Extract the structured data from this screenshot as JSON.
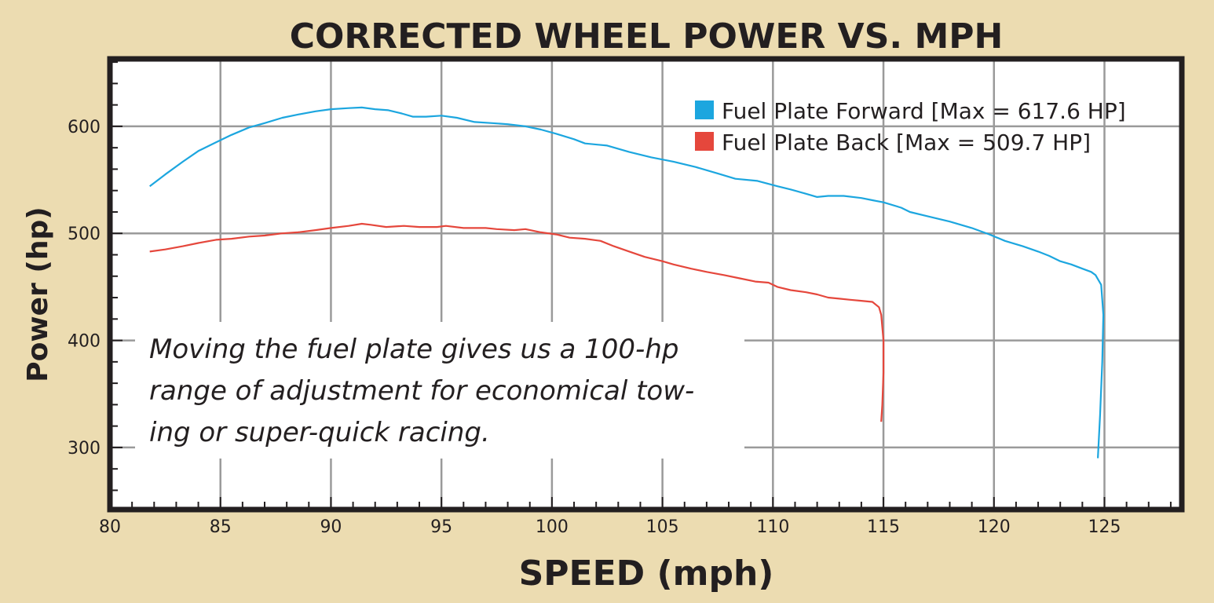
{
  "colors": {
    "page_background": "#ecdcb1",
    "plot_background": "#ffffff",
    "frame": "#231f20",
    "grid": "#9a9a9a",
    "fuel_plate_forward": "#1ca6df",
    "fuel_plate_back": "#e5473c",
    "text": "#231f20"
  },
  "chart_data": {
    "type": "line",
    "title": "CORRECTED WHEEL POWER VS. MPH",
    "xlabel": "SPEED (mph)",
    "ylabel": "Power (hp)",
    "xlim": [
      80,
      128.5
    ],
    "ylim": [
      242,
      663
    ],
    "x_ticks": [
      80,
      85,
      90,
      95,
      100,
      105,
      110,
      115,
      120,
      125
    ],
    "y_ticks": [
      300,
      400,
      500,
      600
    ],
    "grid": true,
    "legend_position": "top-right",
    "annotation": "Moving the fuel plate gives us a 100-hp range of adjustment for economical tow- ing or super-quick racing.",
    "annotation_lines": [
      "Moving the fuel plate gives us a 100-hp",
      "range of adjustment for economical tow-",
      "ing or super-quick racing."
    ],
    "series": [
      {
        "name": "Fuel Plate Forward [Max = 617.6 HP]",
        "color": "#1ca6df",
        "points": [
          [
            81.8,
            544
          ],
          [
            82.5,
            555
          ],
          [
            83.3,
            567
          ],
          [
            84.0,
            577
          ],
          [
            84.8,
            585
          ],
          [
            85.5,
            592
          ],
          [
            86.3,
            599
          ],
          [
            87.0,
            603
          ],
          [
            87.8,
            608
          ],
          [
            88.5,
            611
          ],
          [
            89.3,
            614
          ],
          [
            90.0,
            616
          ],
          [
            90.8,
            617
          ],
          [
            91.4,
            617.6
          ],
          [
            92.0,
            616
          ],
          [
            92.6,
            615
          ],
          [
            93.2,
            612
          ],
          [
            93.7,
            609
          ],
          [
            94.3,
            609
          ],
          [
            95.0,
            610
          ],
          [
            95.7,
            608
          ],
          [
            96.5,
            604
          ],
          [
            97.3,
            603
          ],
          [
            98.0,
            602
          ],
          [
            98.8,
            600
          ],
          [
            99.5,
            597
          ],
          [
            100.2,
            593
          ],
          [
            101.0,
            588
          ],
          [
            101.5,
            584
          ],
          [
            102.5,
            582
          ],
          [
            103.5,
            576
          ],
          [
            104.5,
            571
          ],
          [
            105.5,
            567
          ],
          [
            106.5,
            562
          ],
          [
            107.5,
            556
          ],
          [
            108.3,
            551
          ],
          [
            109.3,
            549
          ],
          [
            110.2,
            544
          ],
          [
            110.8,
            541
          ],
          [
            111.5,
            537
          ],
          [
            112.0,
            534
          ],
          [
            112.5,
            535
          ],
          [
            113.2,
            535
          ],
          [
            114.0,
            533
          ],
          [
            114.5,
            531
          ],
          [
            115.0,
            529
          ],
          [
            115.8,
            524
          ],
          [
            116.2,
            520
          ],
          [
            117.0,
            516
          ],
          [
            118.0,
            511
          ],
          [
            119.0,
            505
          ],
          [
            119.8,
            499
          ],
          [
            120.5,
            493
          ],
          [
            121.3,
            488
          ],
          [
            122.0,
            483
          ],
          [
            122.5,
            479
          ],
          [
            123.0,
            474
          ],
          [
            123.5,
            471
          ],
          [
            124.0,
            467
          ],
          [
            124.4,
            464
          ],
          [
            124.6,
            461
          ],
          [
            124.85,
            452
          ],
          [
            124.95,
            424
          ],
          [
            124.9,
            380
          ],
          [
            124.8,
            330
          ],
          [
            124.7,
            290
          ]
        ]
      },
      {
        "name": "Fuel Plate Back [Max = 509.7 HP]",
        "color": "#e5473c",
        "points": [
          [
            81.8,
            483
          ],
          [
            82.5,
            485
          ],
          [
            83.3,
            488
          ],
          [
            84.0,
            491
          ],
          [
            84.8,
            494
          ],
          [
            85.5,
            495
          ],
          [
            86.3,
            497
          ],
          [
            87.0,
            498
          ],
          [
            87.8,
            500
          ],
          [
            88.5,
            501
          ],
          [
            89.3,
            503
          ],
          [
            90.0,
            505
          ],
          [
            90.8,
            507
          ],
          [
            91.4,
            509
          ],
          [
            91.8,
            508
          ],
          [
            92.5,
            506
          ],
          [
            93.3,
            507
          ],
          [
            94.0,
            506
          ],
          [
            94.8,
            506
          ],
          [
            95.2,
            507
          ],
          [
            96.0,
            505
          ],
          [
            97.0,
            505
          ],
          [
            97.5,
            504
          ],
          [
            98.3,
            503
          ],
          [
            98.8,
            504
          ],
          [
            99.5,
            501
          ],
          [
            100.2,
            499
          ],
          [
            100.8,
            496
          ],
          [
            101.5,
            495
          ],
          [
            102.2,
            493
          ],
          [
            102.8,
            488
          ],
          [
            103.5,
            483
          ],
          [
            104.2,
            478
          ],
          [
            105.0,
            474
          ],
          [
            105.5,
            471
          ],
          [
            106.3,
            467
          ],
          [
            107.0,
            464
          ],
          [
            107.8,
            461
          ],
          [
            108.5,
            458
          ],
          [
            109.2,
            455
          ],
          [
            109.8,
            454
          ],
          [
            110.2,
            450
          ],
          [
            110.8,
            447
          ],
          [
            111.5,
            445
          ],
          [
            112.0,
            443
          ],
          [
            112.5,
            440
          ],
          [
            113.0,
            439
          ],
          [
            113.5,
            438
          ],
          [
            114.0,
            437
          ],
          [
            114.5,
            436
          ],
          [
            114.8,
            431
          ],
          [
            114.9,
            424
          ],
          [
            115.0,
            400
          ],
          [
            115.0,
            370
          ],
          [
            114.95,
            340
          ],
          [
            114.9,
            324
          ]
        ]
      }
    ]
  }
}
